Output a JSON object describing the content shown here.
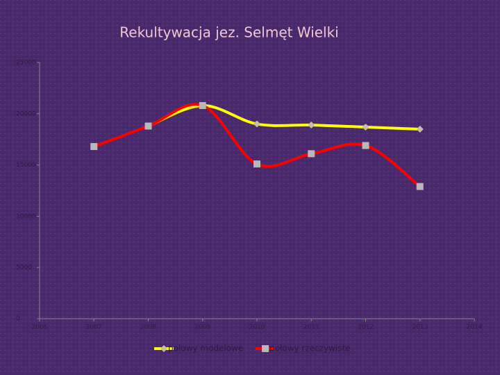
{
  "chart_data": {
    "type": "line",
    "title": "Rekultywacja  jez. Selmęt Wielki",
    "x": [
      2007,
      2008,
      2009,
      2010,
      2011,
      2012,
      2013
    ],
    "series": [
      {
        "name": "połowy modelowe",
        "color": "#ffff00",
        "marker": "diamond",
        "marker_color": "#c8c0a0",
        "values": [
          null,
          18800,
          20800,
          19000,
          18900,
          18700,
          18500
        ]
      },
      {
        "name": "połowy rzeczywiste",
        "color": "#ff0000",
        "marker": "square",
        "marker_color": "#b8b8b8",
        "values": [
          16800,
          18800,
          20800,
          15100,
          16100,
          16900,
          12900
        ]
      }
    ],
    "xlim": [
      2006,
      2014
    ],
    "xticks": [
      2006,
      2007,
      2008,
      2009,
      2010,
      2011,
      2012,
      2013,
      2014
    ],
    "ylim": [
      0,
      25000
    ],
    "yticks": [
      0,
      5000,
      10000,
      15000,
      20000,
      25000
    ],
    "smooth": true,
    "legend": "bottom"
  }
}
